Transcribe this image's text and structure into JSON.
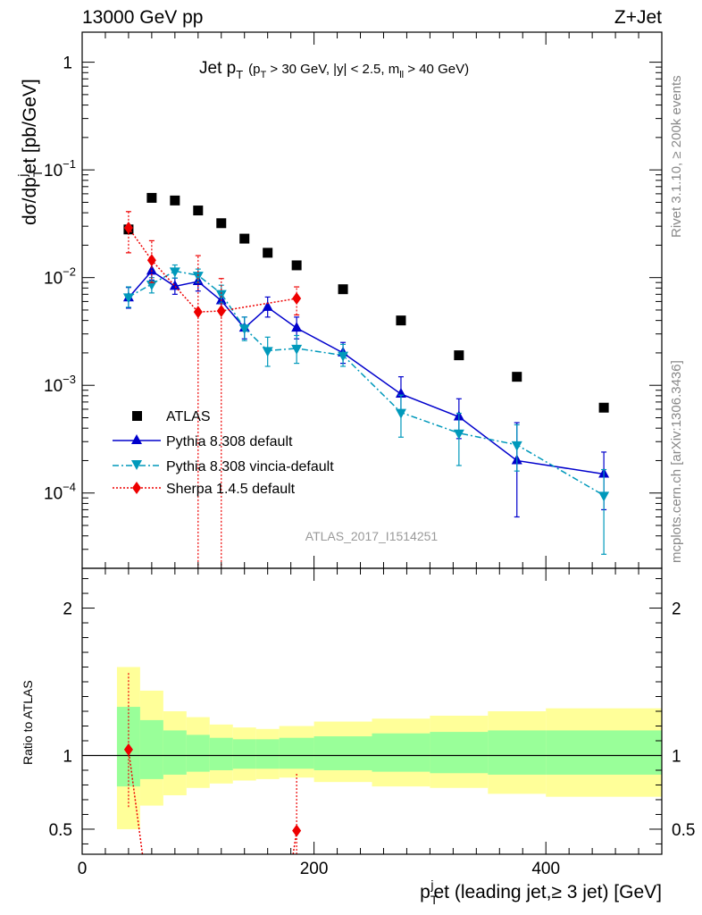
{
  "header": {
    "left_title": "13000 GeV pp",
    "right_title": "Z+Jet"
  },
  "side_labels": {
    "rivet": "Rivet 3.1.10, ≥ 200k events",
    "mcplots": "mcplots.cern.ch [arXiv:1306.3436]"
  },
  "plot_title": {
    "main": "Jet p",
    "main_sub": "T",
    "cuts_a": "(p",
    "cuts_a_sub": "T",
    "cuts_b": " > 30 GeV, |y| < 2.5, m",
    "cuts_b_sub": "ll",
    "cuts_c": " > 40 GeV)"
  },
  "analysis_id": "ATLAS_2017_I1514251",
  "y_axis_upper": {
    "p1": "dσ/dp",
    "p1_sub": "T",
    "p1_sup": "j",
    "p2": "et [pb/GeV]"
  },
  "y_axis_lower": "Ratio to ATLAS",
  "x_axis": {
    "p1": "p",
    "p1_sub": "T",
    "p1_sup": "j",
    "p2": "et (leading jet,≥ 3 jet) [GeV]"
  },
  "legend": [
    {
      "label": "ATLAS"
    },
    {
      "label": "Pythia 8.308 default"
    },
    {
      "label": "Pythia 8.308 vincia-default"
    },
    {
      "label": "Sherpa 1.4.5 default"
    }
  ],
  "colors": {
    "atlas": "#000000",
    "pythia": "#0000cc",
    "vincia": "#0099bb",
    "sherpa": "#ee0000",
    "band_inner": "#99ff99",
    "band_outer": "#ffff99"
  },
  "chart_data": {
    "type": "scatter",
    "x_label": "p_T^jet (leading jet,≥ 3 jet) [GeV]",
    "xlim": [
      0,
      500
    ],
    "x_ticks": [
      "0",
      "200",
      "400"
    ],
    "upper": {
      "y_label": "dσ/dp_T^jet [pb/GeV]",
      "y_scale": "log",
      "ylim": [
        2e-05,
        1.9
      ],
      "y_ticks": [
        {
          "value": 1,
          "mant": "1",
          "exp": ""
        },
        {
          "value": 0.1,
          "mant": "10",
          "exp": "−1"
        },
        {
          "value": 0.01,
          "mant": "10",
          "exp": "−2"
        },
        {
          "value": 0.001,
          "mant": "10",
          "exp": "−3"
        },
        {
          "value": 0.0001,
          "mant": "10",
          "exp": "−4"
        }
      ],
      "series": [
        {
          "name": "ATLAS",
          "style": "square",
          "x": [
            40,
            60,
            80,
            100,
            120,
            140,
            160,
            185,
            225,
            275,
            325,
            375,
            450
          ],
          "y": [
            0.028,
            0.055,
            0.052,
            0.042,
            0.032,
            0.023,
            0.017,
            0.013,
            0.0078,
            0.004,
            0.0019,
            0.0012,
            0.00062
          ]
        },
        {
          "name": "Pythia 8.308 default",
          "style": "triangle-up",
          "x": [
            40,
            60,
            80,
            100,
            120,
            140,
            160,
            185,
            225,
            275,
            325,
            375,
            450
          ],
          "y": [
            0.0065,
            0.0115,
            0.0083,
            0.0092,
            0.0061,
            0.0034,
            0.0053,
            0.0034,
            0.002,
            0.00083,
            0.00051,
            0.0002,
            0.00015
          ],
          "err_lo": [
            0.0052,
            0.0095,
            0.007,
            0.0075,
            0.005,
            0.0027,
            0.0043,
            0.0027,
            0.0016,
            0.00057,
            0.00032,
            6e-05,
            7e-05
          ],
          "err_hi": [
            0.0081,
            0.014,
            0.0099,
            0.011,
            0.0075,
            0.0043,
            0.0066,
            0.0043,
            0.0025,
            0.0012,
            0.00075,
            0.00045,
            0.00024
          ]
        },
        {
          "name": "Pythia 8.308 vincia-default",
          "style": "triangle-down",
          "x": [
            40,
            60,
            80,
            100,
            120,
            140,
            160,
            185,
            225,
            275,
            325,
            375,
            450
          ],
          "y": [
            0.0066,
            0.0087,
            0.0115,
            0.0105,
            0.0071,
            0.0034,
            0.0021,
            0.0022,
            0.0019,
            0.00056,
            0.00036,
            0.00028,
            9.5e-05
          ],
          "err_lo": [
            0.0053,
            0.0072,
            0.0099,
            0.009,
            0.0058,
            0.0026,
            0.0015,
            0.0016,
            0.0015,
            0.00033,
            0.00018,
            0.00016,
            2.7e-05
          ],
          "err_hi": [
            0.0082,
            0.01,
            0.0131,
            0.012,
            0.0085,
            0.0043,
            0.0028,
            0.0029,
            0.0024,
            0.00081,
            0.00055,
            0.00043,
            0.000165
          ]
        },
        {
          "name": "Sherpa 1.4.5 default",
          "style": "diamond",
          "x": [
            40,
            60,
            100,
            120,
            185
          ],
          "y": [
            0.029,
            0.0145,
            0.0048,
            0.0049,
            0.0064
          ],
          "err_lo": [
            0.017,
            0.009,
            1e-06,
            1e-06,
            0.0045
          ],
          "err_hi": [
            0.041,
            0.022,
            0.016,
            0.0098,
            0.0082
          ]
        }
      ]
    },
    "lower": {
      "y_label": "Ratio to ATLAS",
      "ylim": [
        0.33,
        2.27
      ],
      "y_ticks": [
        "0.5",
        "1",
        "2"
      ],
      "bin_edges": [
        30,
        50,
        70,
        90,
        110,
        130,
        150,
        170,
        200,
        250,
        300,
        350,
        400,
        500
      ],
      "band_inner": [
        [
          0.79,
          1.33
        ],
        [
          0.84,
          1.24
        ],
        [
          0.87,
          1.17
        ],
        [
          0.89,
          1.14
        ],
        [
          0.9,
          1.12
        ],
        [
          0.91,
          1.11
        ],
        [
          0.91,
          1.11
        ],
        [
          0.91,
          1.12
        ],
        [
          0.9,
          1.13
        ],
        [
          0.89,
          1.15
        ],
        [
          0.88,
          1.16
        ],
        [
          0.87,
          1.17
        ],
        [
          0.87,
          1.17
        ]
      ],
      "band_outer": [
        [
          0.5,
          1.6
        ],
        [
          0.66,
          1.44
        ],
        [
          0.73,
          1.3
        ],
        [
          0.78,
          1.26
        ],
        [
          0.81,
          1.21
        ],
        [
          0.83,
          1.19
        ],
        [
          0.84,
          1.18
        ],
        [
          0.85,
          1.2
        ],
        [
          0.82,
          1.23
        ],
        [
          0.79,
          1.25
        ],
        [
          0.78,
          1.27
        ],
        [
          0.74,
          1.3
        ],
        [
          0.72,
          1.32
        ]
      ],
      "series": [
        {
          "name": "Sherpa 1.4.5 default",
          "x": [
            40,
            185
          ],
          "y": [
            1.04,
            0.49
          ],
          "err_lo": [
            0.65,
            0.33
          ],
          "err_hi": [
            1.57,
            0.88
          ],
          "line_from": [
            [
              40,
              1.04
            ],
            [
              52,
              0.33
            ]
          ],
          "line_to": [
            [
              182,
              0.33
            ],
            [
              185,
              0.49
            ]
          ]
        }
      ]
    }
  }
}
